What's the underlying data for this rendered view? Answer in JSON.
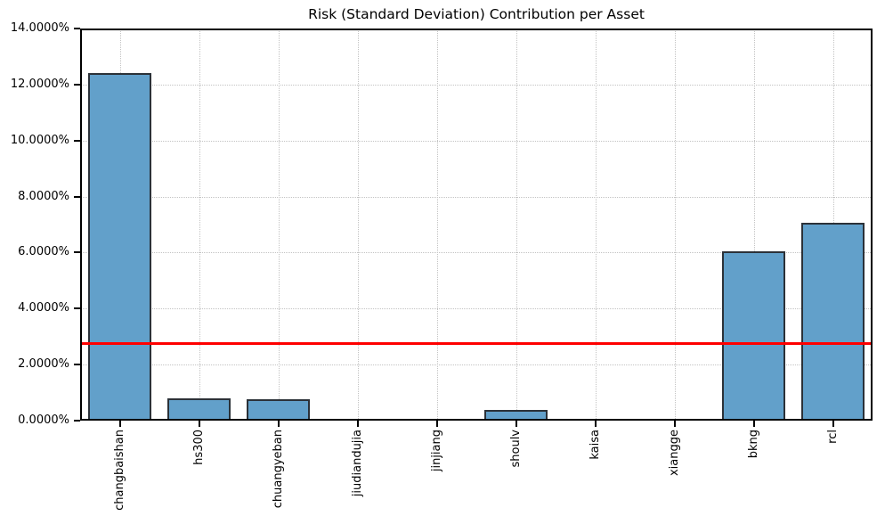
{
  "chart_data": {
    "type": "bar",
    "title": "Risk (Standard Deviation) Contribution per Asset",
    "categories": [
      "changbaishan",
      "hs300",
      "chuangyeban",
      "jiudiandujia",
      "jinjiang",
      "shoulv",
      "kaisa",
      "xiangge",
      "bkng",
      "rcl"
    ],
    "values": [
      12.41,
      0.81,
      0.76,
      0.005,
      0.005,
      0.39,
      0.005,
      0.005,
      6.05,
      7.05
    ],
    "values_unit": "percent",
    "xlabel": "",
    "ylabel": "",
    "ylim": [
      0,
      14
    ],
    "y_ticks": [
      0,
      2,
      4,
      6,
      8,
      10,
      12,
      14
    ],
    "y_tick_labels": [
      "0.0000%",
      "2.0000%",
      "4.0000%",
      "6.0000%",
      "8.0000%",
      "10.0000%",
      "12.0000%",
      "14.0000%"
    ],
    "mean_line": {
      "value": 2.75,
      "color": "#ff0000"
    },
    "grid": "dotted",
    "legend": "none",
    "bar_color": "#62a0ca",
    "bar_edge_color": "#2b3138",
    "background": "#ffffff"
  }
}
